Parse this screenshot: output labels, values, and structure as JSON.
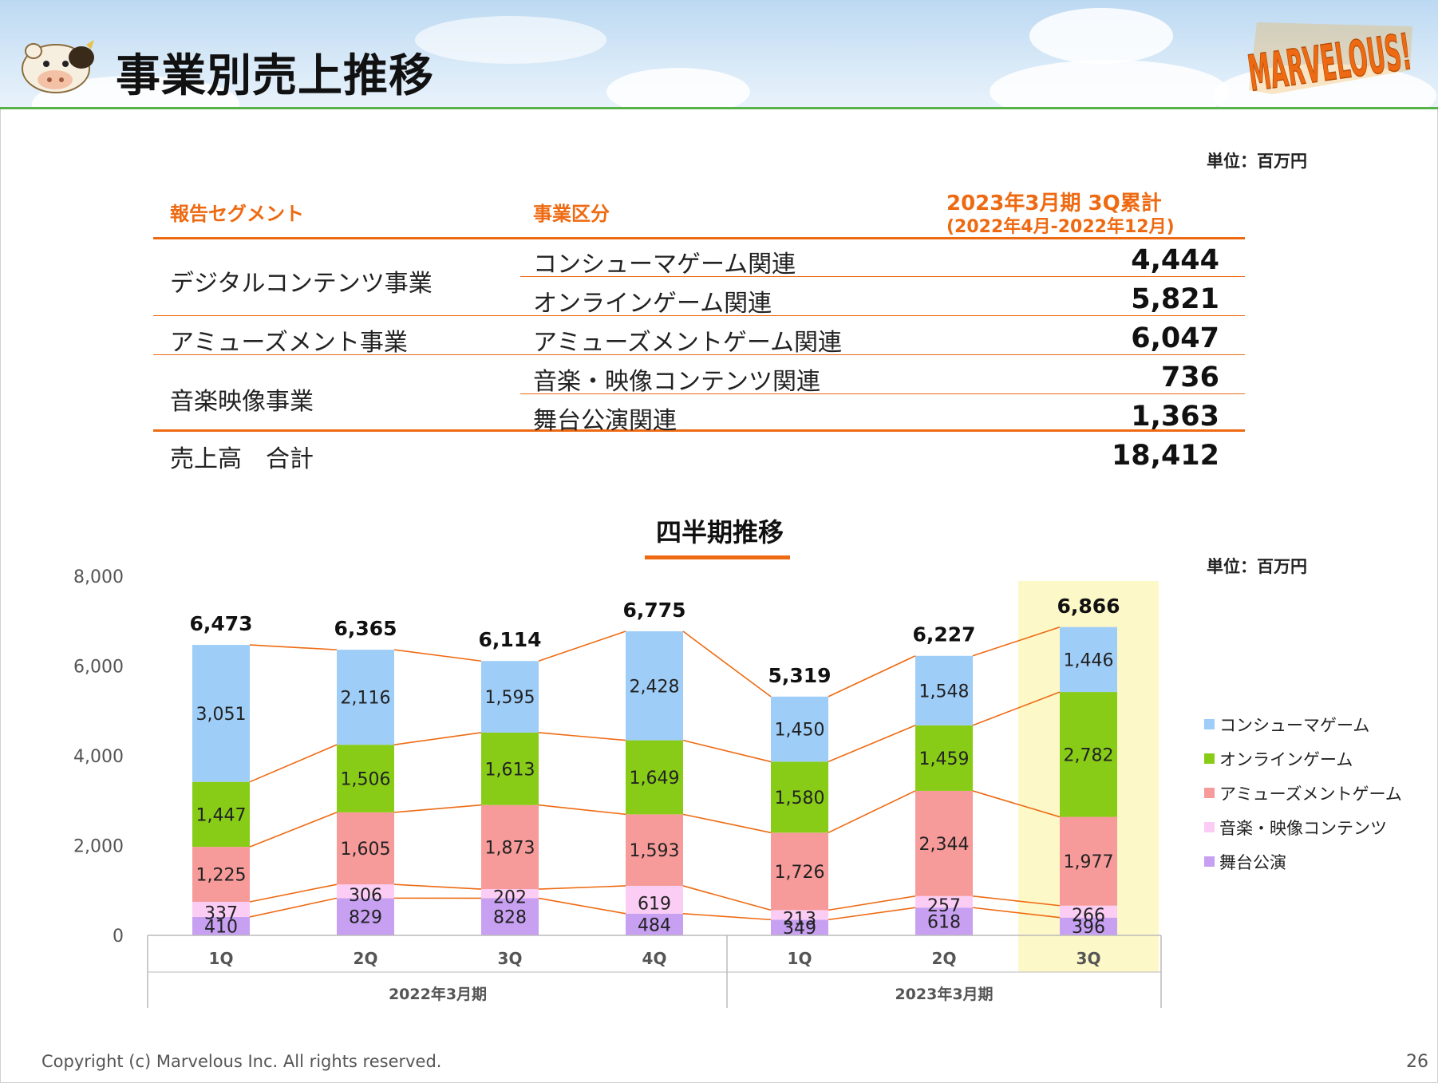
{
  "slide": {
    "title": "事業別売上推移",
    "logo_text": "MARVELOUS!",
    "footer": "Copyright (c) Marvelous Inc. All rights reserved.",
    "page_number": "26"
  },
  "table": {
    "unit": "単位：百万円",
    "headers": {
      "segment": "報告セグメント",
      "business": "事業区分",
      "period_line1": "2023年3月期 3Q累計",
      "period_line2": "(2022年4月-2022年12月)"
    },
    "rows": [
      {
        "segment": "デジタルコンテンツ事業",
        "business": "コンシューマゲーム関連",
        "value": "4,444"
      },
      {
        "segment": "",
        "business": "オンラインゲーム関連",
        "value": "5,821"
      },
      {
        "segment": "アミューズメント事業",
        "business": "アミューズメントゲーム関連",
        "value": "6,047"
      },
      {
        "segment": "音楽映像事業",
        "business": "音楽・映像コンテンツ関連",
        "value": "736"
      },
      {
        "segment": "",
        "business": "舞台公演関連",
        "value": "1,363"
      }
    ],
    "total": {
      "label": "売上高　合計",
      "value": "18,412"
    }
  },
  "chart_data": {
    "type": "bar",
    "stacked": true,
    "title": "四半期推移",
    "unit": "単位：百万円",
    "ylim": [
      0,
      8000
    ],
    "yticks": [
      "0",
      "2,000",
      "4,000",
      "6,000",
      "8,000"
    ],
    "categories": [
      "1Q",
      "2Q",
      "3Q",
      "4Q",
      "1Q",
      "2Q",
      "3Q"
    ],
    "groups": [
      {
        "label": "2022年3月期",
        "count": 4
      },
      {
        "label": "2023年3月期",
        "count": 3
      }
    ],
    "highlight_index": 6,
    "highlight_color": "#fdf8c8",
    "connector_color": "#ee6a12",
    "series": [
      {
        "name": "舞台公演",
        "color": "#c7a0f2",
        "values": [
          410,
          829,
          828,
          484,
          349,
          618,
          396
        ]
      },
      {
        "name": "音楽・映像コンテンツ",
        "color": "#fccdf4",
        "values": [
          337,
          306,
          202,
          619,
          213,
          257,
          266
        ]
      },
      {
        "name": "アミューズメントゲーム",
        "color": "#f79a9a",
        "values": [
          1225,
          1605,
          1873,
          1593,
          1726,
          2344,
          1977
        ]
      },
      {
        "name": "オンラインゲーム",
        "color": "#88cc18",
        "values": [
          1447,
          1506,
          1613,
          1649,
          1580,
          1459,
          2782
        ]
      },
      {
        "name": "コンシューマゲーム",
        "color": "#9ecdf8",
        "values": [
          3051,
          2116,
          1595,
          2428,
          1450,
          1548,
          1446
        ]
      }
    ],
    "totals": [
      6473,
      6365,
      6114,
      6775,
      5319,
      6227,
      6866
    ],
    "legend_order": [
      "コンシューマゲーム",
      "オンラインゲーム",
      "アミューズメントゲーム",
      "音楽・映像コンテンツ",
      "舞台公演"
    ],
    "legend_position": "right"
  }
}
